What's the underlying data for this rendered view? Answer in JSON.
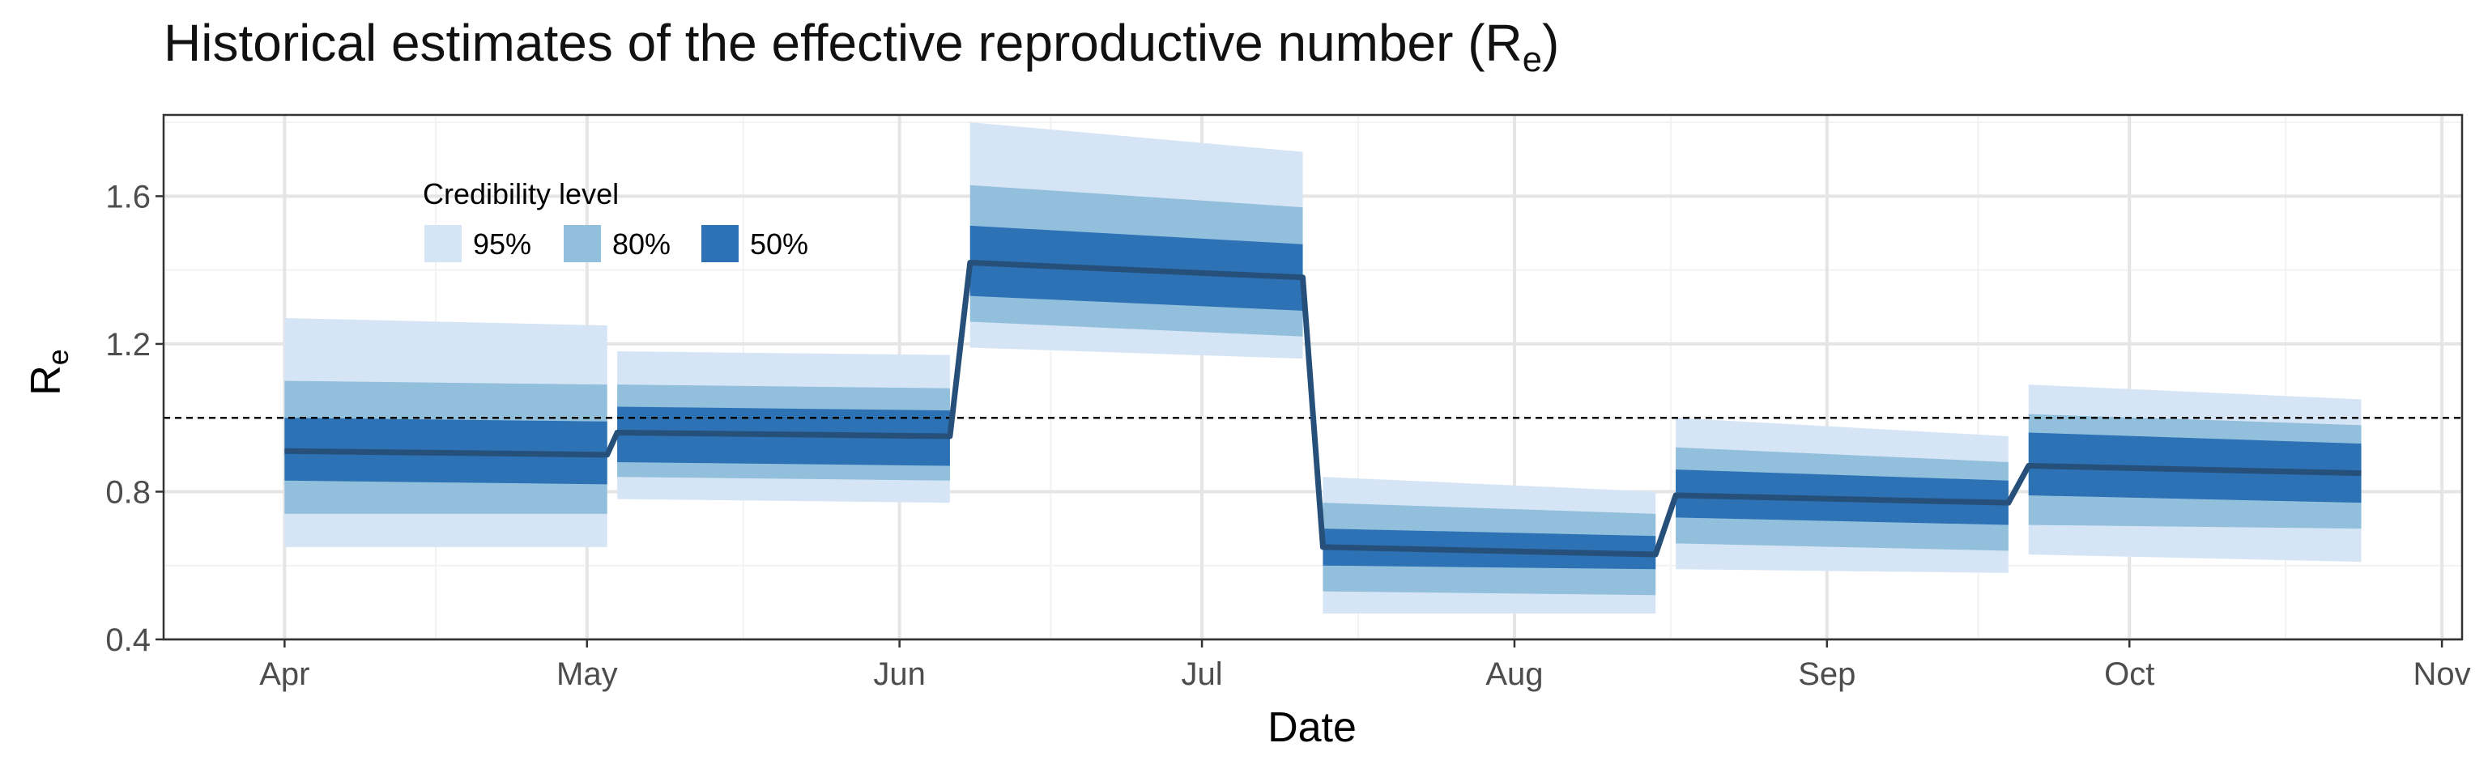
{
  "chart_data": {
    "type": "area",
    "title_main": "Historical estimates of the effective reproductive number (R",
    "title_sub": "e",
    "title_end": ")",
    "xlabel": "Date",
    "ylabel_main": "R",
    "ylabel_sub": "e",
    "x_ticks": [
      "Apr",
      "May",
      "Jun",
      "Jul",
      "Aug",
      "Sep",
      "Oct",
      "Nov"
    ],
    "x_tick_dates": [
      "2020-04-01",
      "2020-05-01",
      "2020-06-01",
      "2020-07-01",
      "2020-08-01",
      "2020-09-01",
      "2020-10-01",
      "2020-11-01"
    ],
    "xlim": [
      "2020-03-20",
      "2020-11-03"
    ],
    "y_ticks": [
      "0.4",
      "0.8",
      "1.2",
      "1.6"
    ],
    "ylim": [
      0.4,
      1.82
    ],
    "reference_line": 1.0,
    "grid": true,
    "legend": {
      "title": "Credibility level",
      "position": "top-left",
      "entries": [
        {
          "label": "95%",
          "color": "#d6e5f5"
        },
        {
          "label": "80%",
          "color": "#91bfdc"
        },
        {
          "label": "50%",
          "color": "#2c72b5"
        }
      ]
    },
    "colors": {
      "median": "#26507a",
      "ref_line": "#000000",
      "grid_major": "#e5e5e5",
      "grid_minor": "#f2f2f2",
      "panel_border": "#333333"
    },
    "segments": [
      {
        "start": "2020-04-01",
        "end": "2020-05-03",
        "median": [
          0.91,
          0.9
        ],
        "ci50": [
          [
            0.83,
            1.0
          ],
          [
            0.82,
            0.99
          ]
        ],
        "ci80": [
          [
            0.74,
            1.1
          ],
          [
            0.74,
            1.09
          ]
        ],
        "ci95": [
          [
            0.65,
            1.27
          ],
          [
            0.65,
            1.25
          ]
        ]
      },
      {
        "start": "2020-05-04",
        "end": "2020-06-06",
        "median": [
          0.96,
          0.95
        ],
        "ci50": [
          [
            0.88,
            1.03
          ],
          [
            0.87,
            1.02
          ]
        ],
        "ci80": [
          [
            0.84,
            1.09
          ],
          [
            0.83,
            1.08
          ]
        ],
        "ci95": [
          [
            0.78,
            1.18
          ],
          [
            0.77,
            1.17
          ]
        ]
      },
      {
        "start": "2020-06-08",
        "end": "2020-07-11",
        "median": [
          1.42,
          1.38
        ],
        "ci50": [
          [
            1.33,
            1.52
          ],
          [
            1.29,
            1.47
          ]
        ],
        "ci80": [
          [
            1.26,
            1.63
          ],
          [
            1.22,
            1.57
          ]
        ],
        "ci95": [
          [
            1.19,
            1.8
          ],
          [
            1.16,
            1.72
          ]
        ]
      },
      {
        "start": "2020-07-13",
        "end": "2020-08-15",
        "median": [
          0.65,
          0.63
        ],
        "ci50": [
          [
            0.6,
            0.7
          ],
          [
            0.59,
            0.68
          ]
        ],
        "ci80": [
          [
            0.53,
            0.77
          ],
          [
            0.52,
            0.74
          ]
        ],
        "ci95": [
          [
            0.47,
            0.84
          ],
          [
            0.47,
            0.8
          ]
        ]
      },
      {
        "start": "2020-08-17",
        "end": "2020-09-19",
        "median": [
          0.79,
          0.77
        ],
        "ci50": [
          [
            0.73,
            0.86
          ],
          [
            0.71,
            0.83
          ]
        ],
        "ci80": [
          [
            0.66,
            0.92
          ],
          [
            0.64,
            0.88
          ]
        ],
        "ci95": [
          [
            0.59,
            1.0
          ],
          [
            0.58,
            0.95
          ]
        ]
      },
      {
        "start": "2020-09-21",
        "end": "2020-10-24",
        "median": [
          0.87,
          0.85
        ],
        "ci50": [
          [
            0.79,
            0.96
          ],
          [
            0.77,
            0.93
          ]
        ],
        "ci80": [
          [
            0.71,
            1.01
          ],
          [
            0.7,
            0.98
          ]
        ],
        "ci95": [
          [
            0.63,
            1.09
          ],
          [
            0.61,
            1.05
          ]
        ]
      }
    ]
  }
}
